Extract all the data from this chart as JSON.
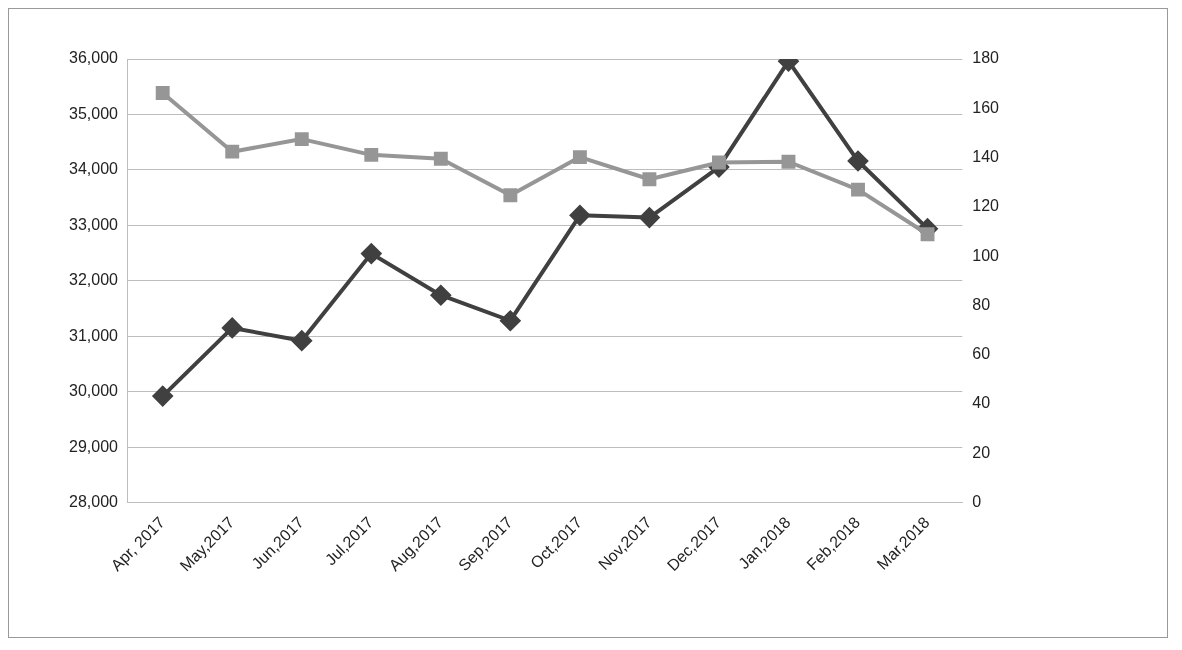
{
  "chart_data": {
    "type": "line",
    "categories": [
      "Apr, 2017",
      "May,2017",
      "Jun,2017",
      "Jul,2017",
      "Aug,2017",
      "Sep,2017",
      "Oct,2017",
      "Nov,2017",
      "Dec,2017",
      "Jan,2018",
      "Feb,2018",
      "Mar,2018"
    ],
    "series": [
      {
        "color": "#404040",
        "marker": "diamond",
        "values": [
          29920,
          31150,
          30920,
          32490,
          31740,
          31280,
          33180,
          33140,
          34050,
          35960,
          34160,
          32940
        ]
      },
      {
        "color": "#969696",
        "marker": "square",
        "axis": "y2",
        "values": [
          166.2,
          142.4,
          147.5,
          141.1,
          139.5,
          124.7,
          140.2,
          131.2,
          138,
          138.3,
          127,
          108.9
        ]
      }
    ],
    "ylim": [
      28000,
      36000
    ],
    "yticks": [
      {
        "value": 28000,
        "label": "28,000"
      },
      {
        "value": 29000,
        "label": "29,000"
      },
      {
        "value": 30000,
        "label": "30,000"
      },
      {
        "value": 31000,
        "label": "31,000"
      },
      {
        "value": 32000,
        "label": "32,000"
      },
      {
        "value": 33000,
        "label": "33,000"
      },
      {
        "value": 34000,
        "label": "34,000"
      },
      {
        "value": 35000,
        "label": "35,000"
      },
      {
        "value": 36000,
        "label": "36,000"
      }
    ],
    "y2lim": [
      0,
      180
    ],
    "y2ticks": [
      0,
      20,
      40,
      60,
      80,
      100,
      120,
      140,
      160,
      180
    ],
    "grid": "y",
    "line_style": "solid"
  }
}
